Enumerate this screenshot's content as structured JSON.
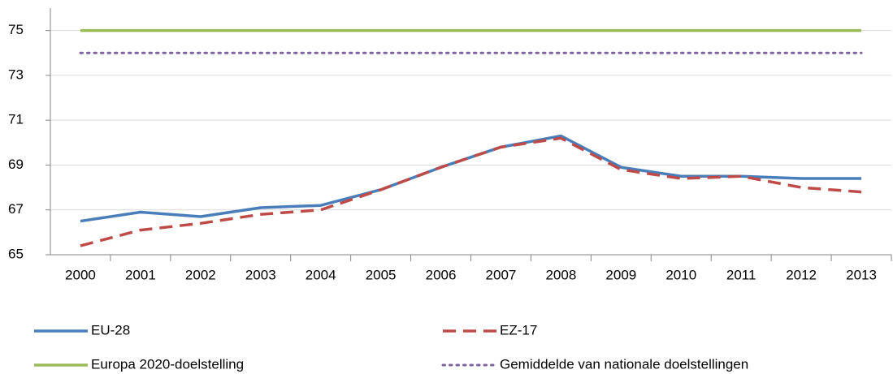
{
  "chart_data": {
    "type": "line",
    "categories": [
      "2000",
      "2001",
      "2002",
      "2003",
      "2004",
      "2005",
      "2006",
      "2007",
      "2008",
      "2009",
      "2010",
      "2011",
      "2012",
      "2013"
    ],
    "series": [
      {
        "name": "EU-28",
        "color": "#4a7ebb",
        "style": "solid",
        "values": [
          66.5,
          66.9,
          66.7,
          67.1,
          67.2,
          67.9,
          68.9,
          69.8,
          70.3,
          68.9,
          68.5,
          68.5,
          68.4,
          68.4
        ]
      },
      {
        "name": "EZ-17",
        "color": "#be4b48",
        "style": "dashed",
        "values": [
          65.4,
          66.1,
          66.4,
          66.8,
          67.0,
          67.9,
          68.9,
          69.8,
          70.2,
          68.8,
          68.4,
          68.5,
          68.0,
          67.8
        ]
      },
      {
        "name": "Europa 2020-doelstelling",
        "color": "#9bbb59",
        "style": "solid",
        "values": [
          75,
          75,
          75,
          75,
          75,
          75,
          75,
          75,
          75,
          75,
          75,
          75,
          75,
          75
        ]
      },
      {
        "name": "Gemiddelde van nationale doelstellingen",
        "color": "#8064a2",
        "style": "dotted",
        "values": [
          74,
          74,
          74,
          74,
          74,
          74,
          74,
          74,
          74,
          74,
          74,
          74,
          74,
          74
        ]
      }
    ],
    "ylim": [
      65,
      76
    ],
    "yticks": [
      65,
      67,
      69,
      71,
      73,
      75
    ],
    "grid": true,
    "legend": "bottom"
  }
}
